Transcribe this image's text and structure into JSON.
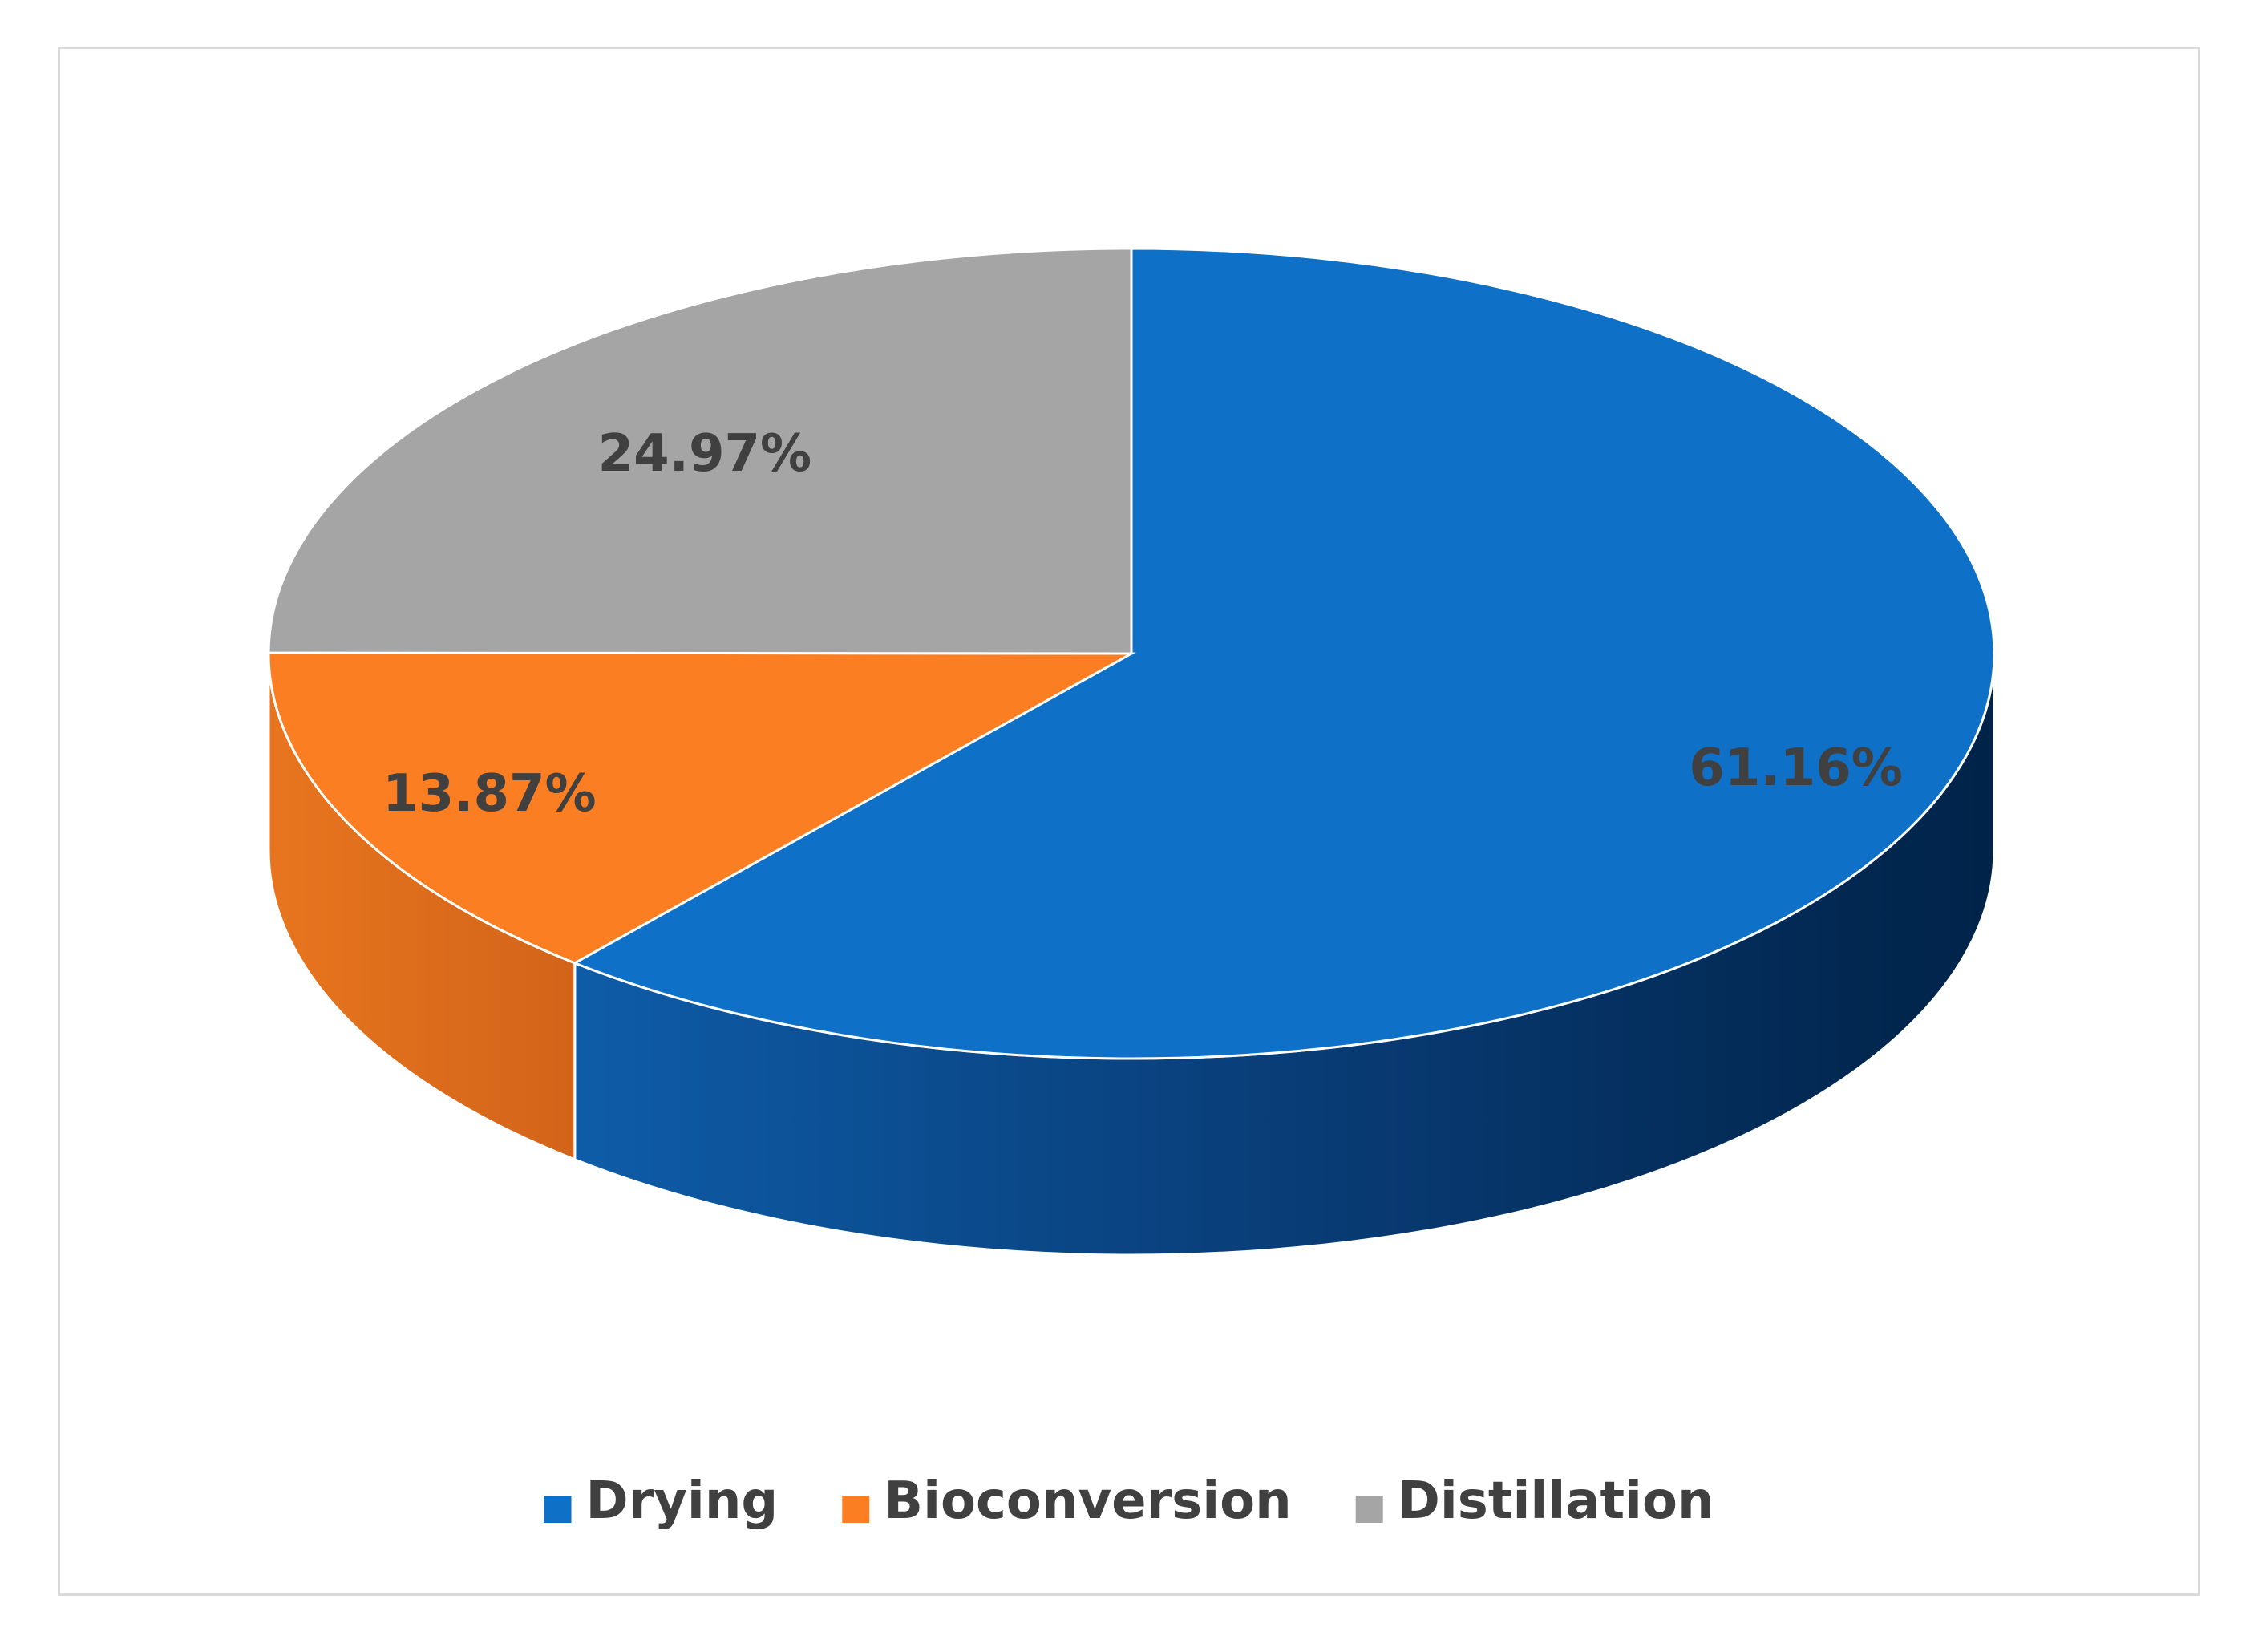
{
  "chart_data": {
    "type": "pie",
    "style": "3d",
    "categories": [
      "Drying",
      "Bioconversion",
      "Distillation"
    ],
    "values": [
      61.16,
      13.87,
      24.97
    ],
    "labels": [
      "61.16%",
      "13.87%",
      "24.97%"
    ],
    "colors": [
      "#0E70C6",
      "#FB7E22",
      "#A5A5A5"
    ],
    "side_colors": [
      "#0A4F8F",
      "#DB6A1B",
      "#7F7F7F"
    ],
    "start_angle_deg": 0,
    "direction": "clockwise",
    "legend_position": "bottom",
    "title": ""
  }
}
